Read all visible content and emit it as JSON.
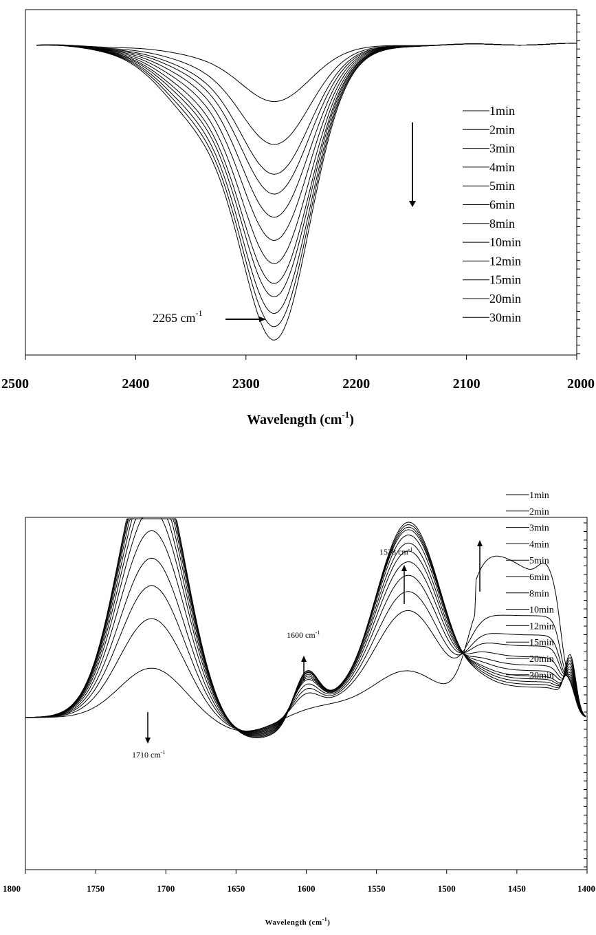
{
  "chart_data": [
    {
      "type": "line",
      "xlabel": "Wavelength (cm",
      "xlabel_sup": "-1",
      "xlabel_close": ")",
      "xlim": [
        2500,
        2000
      ],
      "x_reversed": true,
      "xticks": [
        "2500",
        "2400",
        "2300",
        "2200",
        "2100",
        "2000"
      ],
      "grid": false,
      "legend_position": "right",
      "trend_arrow": "down",
      "legend": [
        "1min",
        "2min",
        "3min",
        "4min",
        " 5min",
        "6min",
        "8min",
        "10min",
        "12min",
        "15min",
        "20min",
        "30min"
      ],
      "peak_center": 2272,
      "peak_depths": [
        0.17,
        0.3,
        0.39,
        0.45,
        0.52,
        0.59,
        0.66,
        0.72,
        0.76,
        0.81,
        0.85,
        0.89
      ],
      "annotations": [
        {
          "text": "2265 cm",
          "sup": "-1",
          "x": 2265
        }
      ]
    },
    {
      "type": "line",
      "xlabel": "Wavelength (cm",
      "xlabel_sup": "-1",
      "xlabel_close": ")",
      "xlim": [
        1800,
        1400
      ],
      "x_reversed": true,
      "xticks": [
        "1800",
        "1750",
        "1700",
        "1650",
        "1600",
        "1550",
        "1500",
        "1450",
        "1400"
      ],
      "grid": false,
      "legend_position": "top-right",
      "trend_arrow": "up",
      "legend": [
        "1min",
        "2min",
        "3min",
        "4min",
        "5min",
        "6min",
        "8min",
        "10min",
        "12min",
        "15min",
        "20min",
        "30min"
      ],
      "peak_1710": [
        0.18,
        0.36,
        0.48,
        0.58,
        0.68,
        0.76,
        0.82,
        0.87,
        0.91,
        0.94,
        0.96,
        0.98
      ],
      "peak_1528": [
        0.16,
        0.38,
        0.45,
        0.51,
        0.56,
        0.6,
        0.63,
        0.66,
        0.68,
        0.69,
        0.7,
        0.71
      ],
      "peak_1600": [
        0.0,
        0.06,
        0.08,
        0.1,
        0.12,
        0.13,
        0.14,
        0.15,
        0.16,
        0.17,
        0.17,
        0.18
      ],
      "dip_1440": [
        -0.5,
        -0.37,
        -0.3,
        -0.26,
        -0.22,
        -0.19,
        -0.17,
        -0.15,
        -0.14,
        -0.13,
        -0.12,
        -0.11
      ],
      "annotations": [
        {
          "text": "1528 cm",
          "sup": "-1",
          "x": 1528
        },
        {
          "text": "1600 cm",
          "sup": "-1",
          "x": 1600
        },
        {
          "text": "1710 cm",
          "sup": "-1",
          "x": 1710
        }
      ]
    }
  ]
}
